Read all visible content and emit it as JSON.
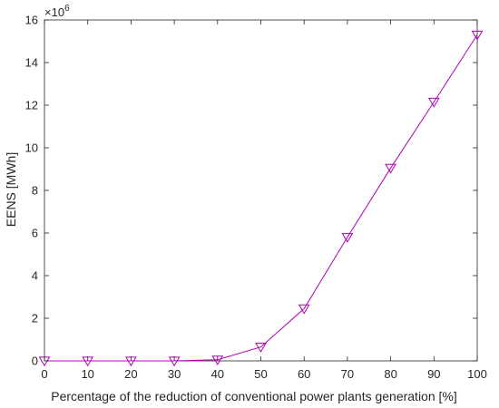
{
  "chart_data": {
    "type": "line",
    "title": "",
    "xlabel": "Percentage of the reduction of conventional power plants generation [%]",
    "ylabel": "EENS [MWh]",
    "y_multiplier": "×10",
    "y_exponent": "6",
    "xlim": [
      0,
      100
    ],
    "ylim": [
      0,
      16
    ],
    "xticks": [
      0,
      10,
      20,
      30,
      40,
      50,
      60,
      70,
      80,
      90,
      100
    ],
    "yticks": [
      0,
      2,
      4,
      6,
      8,
      10,
      12,
      14,
      16
    ],
    "grid": false,
    "series": [
      {
        "color": "#b000b5",
        "marker": "triangle-down",
        "x": [
          0,
          10,
          20,
          30,
          40,
          50,
          60,
          70,
          80,
          90,
          100
        ],
        "y": [
          0,
          0,
          0,
          0,
          0.05,
          0.65,
          2.45,
          5.8,
          9.05,
          12.15,
          15.3
        ]
      }
    ],
    "axis_color": "#262626"
  }
}
